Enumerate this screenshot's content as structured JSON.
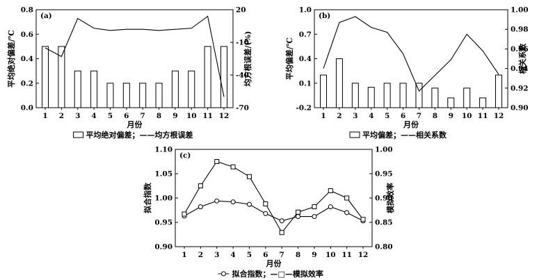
{
  "chart_data": [
    {
      "panel": "(a)",
      "type": "bar+line",
      "categories": [
        "1",
        "2",
        "3",
        "4",
        "5",
        "6",
        "7",
        "8",
        "9",
        "10",
        "11",
        "12"
      ],
      "xlabel": "月份",
      "ylabel": "平均绝对偏差/℃",
      "y2label": "均方根误差/(%)",
      "ylim": [
        0.0,
        0.8
      ],
      "y2lim": [
        -70,
        20
      ],
      "yticks": [
        "0.0",
        "0.2",
        "0.4",
        "0.6",
        "0.8"
      ],
      "y2ticks": [
        "-70",
        "-40",
        "-10",
        "20"
      ],
      "legend": "平均绝对偏差；——均方根误差",
      "series": [
        {
          "kind": "bar",
          "values": [
            0.5,
            0.5,
            0.3,
            0.3,
            0.2,
            0.2,
            0.2,
            0.2,
            0.3,
            0.3,
            0.5,
            0.5
          ]
        },
        {
          "kind": "line",
          "axis": "right",
          "values": [
            -15,
            -23,
            12,
            3,
            1,
            2,
            2,
            1,
            2,
            3,
            14,
            -60
          ]
        }
      ]
    },
    {
      "panel": "(b)",
      "type": "bar+line",
      "categories": [
        "1",
        "2",
        "3",
        "4",
        "5",
        "6",
        "7",
        "8",
        "9",
        "10",
        "11",
        "12"
      ],
      "xlabel": "月份",
      "ylabel": "平均偏差/℃",
      "y2label": "相关系数",
      "ylim": [
        -0.2,
        1.0
      ],
      "y2lim": [
        0.9,
        1.0
      ],
      "yticks": [
        "-0.2",
        "0.1",
        "0.4",
        "0.7",
        "1.0"
      ],
      "y2ticks": [
        "0.90",
        "0.92",
        "0.94",
        "0.96",
        "0.98",
        "1.00"
      ],
      "legend": "平均偏差；——相关系数",
      "series": [
        {
          "kind": "bar",
          "values": [
            0.2,
            0.4,
            0.1,
            0.05,
            0.1,
            0.1,
            0.1,
            0.04,
            -0.08,
            0.04,
            -0.08,
            0.2
          ]
        },
        {
          "kind": "line",
          "axis": "right",
          "values": [
            0.94,
            0.987,
            0.993,
            0.982,
            0.977,
            0.955,
            0.917,
            0.933,
            0.949,
            0.975,
            0.958,
            0.934
          ]
        }
      ]
    },
    {
      "panel": "(c)",
      "type": "line",
      "categories": [
        "1",
        "2",
        "3",
        "4",
        "5",
        "6",
        "7",
        "8",
        "9",
        "10",
        "11",
        "12"
      ],
      "xlabel": "月份",
      "ylabel": "拟合指数",
      "y2label": "模拟效率",
      "ylim": [
        0.9,
        1.1
      ],
      "y2lim": [
        0.8,
        1.0
      ],
      "yticks": [
        "0.90",
        "0.95",
        "1.00",
        "1.05",
        "1.10"
      ],
      "y2ticks": [
        "0.80",
        "0.85",
        "0.90",
        "0.95",
        "1.00"
      ],
      "legend": "拟合指数；—□—模拟效率",
      "series": [
        {
          "kind": "line",
          "marker": "circle",
          "axis": "left",
          "values": [
            0.963,
            0.982,
            0.994,
            0.992,
            0.987,
            0.968,
            0.953,
            0.962,
            0.962,
            0.982,
            0.97,
            0.953
          ]
        },
        {
          "kind": "line",
          "marker": "square",
          "axis": "right",
          "values": [
            0.867,
            0.925,
            0.975,
            0.964,
            0.944,
            0.888,
            0.829,
            0.871,
            0.882,
            0.915,
            0.9,
            0.856
          ]
        }
      ]
    }
  ]
}
